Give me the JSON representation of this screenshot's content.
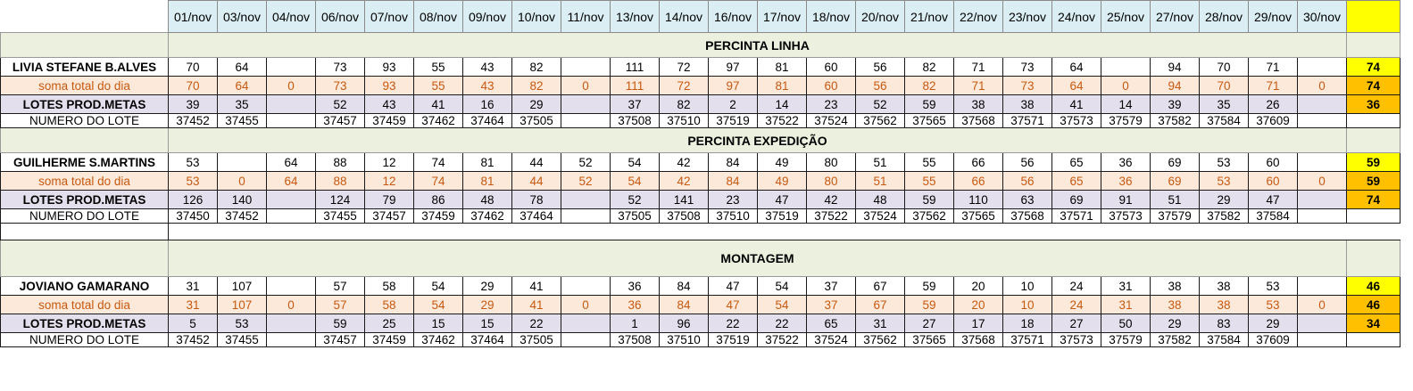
{
  "dates": [
    "01/nov",
    "03/nov",
    "04/nov",
    "06/nov",
    "07/nov",
    "08/nov",
    "09/nov",
    "10/nov",
    "11/nov",
    "13/nov",
    "14/nov",
    "16/nov",
    "17/nov",
    "18/nov",
    "20/nov",
    "21/nov",
    "22/nov",
    "23/nov",
    "24/nov",
    "25/nov",
    "27/nov",
    "28/nov",
    "29/nov",
    "30/nov"
  ],
  "sections": [
    {
      "title": "PERCINTA LINHA",
      "employee": {
        "label": "LIVIA STEFANE B.ALVES",
        "values": [
          "70",
          "64",
          "",
          "73",
          "93",
          "55",
          "43",
          "82",
          "",
          "111",
          "72",
          "97",
          "81",
          "60",
          "56",
          "82",
          "71",
          "73",
          "64",
          "",
          "94",
          "70",
          "71",
          ""
        ],
        "summary": "74"
      },
      "soma": {
        "label": "soma total  do dia",
        "values": [
          "70",
          "64",
          "0",
          "73",
          "93",
          "55",
          "43",
          "82",
          "0",
          "111",
          "72",
          "97",
          "81",
          "60",
          "56",
          "82",
          "71",
          "73",
          "64",
          "0",
          "94",
          "70",
          "71",
          "0"
        ],
        "summary": "74"
      },
      "lotes": {
        "label": "LOTES PROD.METAS",
        "values": [
          "39",
          "35",
          "",
          "52",
          "43",
          "41",
          "16",
          "29",
          "",
          "37",
          "82",
          "2",
          "14",
          "23",
          "52",
          "59",
          "38",
          "38",
          "41",
          "14",
          "39",
          "35",
          "26",
          ""
        ],
        "summary": "36"
      },
      "numero": {
        "label": "NUMERO DO LOTE",
        "values": [
          "37452",
          "37455",
          "",
          "37457",
          "37459",
          "37462",
          "37464",
          "37505",
          "",
          "37508",
          "37510",
          "37519",
          "37522",
          "37524",
          "37562",
          "37565",
          "37568",
          "37571",
          "37573",
          "37579",
          "37582",
          "37584",
          "37609",
          ""
        ],
        "summary": ""
      }
    },
    {
      "title": "PERCINTA EXPEDIÇÃO",
      "employee": {
        "label": "GUILHERME S.MARTINS",
        "values": [
          "53",
          "",
          "64",
          "88",
          "12",
          "74",
          "81",
          "44",
          "52",
          "54",
          "42",
          "84",
          "49",
          "80",
          "51",
          "55",
          "66",
          "56",
          "65",
          "36",
          "69",
          "53",
          "60",
          ""
        ],
        "summary": "59"
      },
      "soma": {
        "label": "soma total  do dia",
        "values": [
          "53",
          "0",
          "64",
          "88",
          "12",
          "74",
          "81",
          "44",
          "52",
          "54",
          "42",
          "84",
          "49",
          "80",
          "51",
          "55",
          "66",
          "56",
          "65",
          "36",
          "69",
          "53",
          "60",
          "0"
        ],
        "summary": "59"
      },
      "lotes": {
        "label": "LOTES PROD.METAS",
        "values": [
          "126",
          "140",
          "",
          "124",
          "79",
          "86",
          "48",
          "78",
          "",
          "52",
          "141",
          "23",
          "47",
          "42",
          "48",
          "59",
          "110",
          "63",
          "69",
          "91",
          "51",
          "29",
          "47",
          ""
        ],
        "summary": "74"
      },
      "numero": {
        "label": "NUMERO DO LOTE",
        "values": [
          "37450",
          "37452",
          "",
          "37455",
          "37457",
          "37459",
          "37462",
          "37464",
          "",
          "37505",
          "37508",
          "37510",
          "37519",
          "37522",
          "37524",
          "37562",
          "37565",
          "37568",
          "37571",
          "37573",
          "37579",
          "37582",
          "37584",
          ""
        ],
        "summary": ""
      }
    },
    {
      "title": "MONTAGEM",
      "employee": {
        "label": "JOVIANO GAMARANO",
        "values": [
          "31",
          "107",
          "",
          "57",
          "58",
          "54",
          "29",
          "41",
          "",
          "36",
          "84",
          "47",
          "54",
          "37",
          "67",
          "59",
          "20",
          "10",
          "24",
          "31",
          "38",
          "38",
          "53",
          ""
        ],
        "summary": "46"
      },
      "soma": {
        "label": "soma total  do dia",
        "values": [
          "31",
          "107",
          "0",
          "57",
          "58",
          "54",
          "29",
          "41",
          "0",
          "36",
          "84",
          "47",
          "54",
          "37",
          "67",
          "59",
          "20",
          "10",
          "24",
          "31",
          "38",
          "38",
          "53",
          "0"
        ],
        "summary": "46"
      },
      "lotes": {
        "label": "LOTES PROD.METAS",
        "values": [
          "5",
          "53",
          "",
          "59",
          "25",
          "15",
          "15",
          "22",
          "",
          "1",
          "96",
          "22",
          "22",
          "65",
          "31",
          "27",
          "17",
          "18",
          "27",
          "50",
          "29",
          "83",
          "29",
          ""
        ],
        "summary": "34"
      },
      "numero": {
        "label": "NUMERO DO LOTE",
        "values": [
          "37452",
          "37455",
          "",
          "37457",
          "37459",
          "37462",
          "37464",
          "37505",
          "",
          "37508",
          "37510",
          "37519",
          "37522",
          "37524",
          "37562",
          "37565",
          "37568",
          "37571",
          "37573",
          "37579",
          "37582",
          "37584",
          "37609",
          ""
        ],
        "summary": ""
      }
    }
  ],
  "colors": {
    "header": "#daeef3",
    "section": "#ebf1de",
    "soma": "#fde9d9",
    "soma_text": "#c65911",
    "lotes": "#e4dfec",
    "numero_label": "#92d050",
    "summary_yellow": "#ffff00",
    "summary_orange": "#ffc000"
  }
}
